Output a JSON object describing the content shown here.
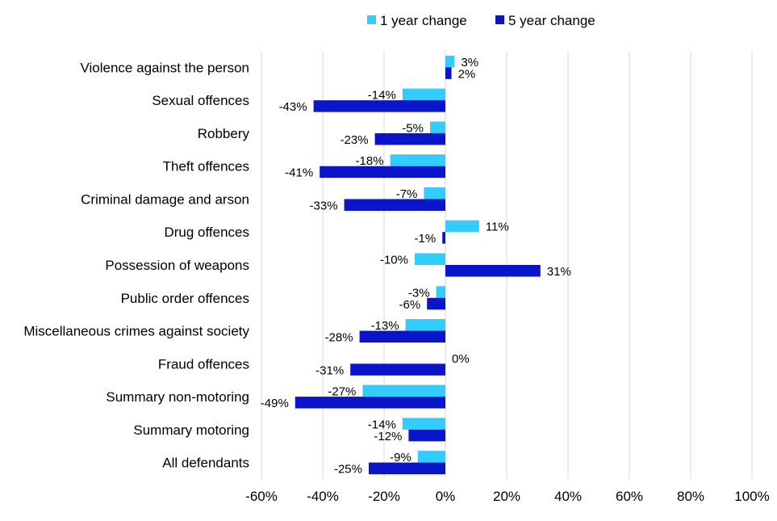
{
  "chart_data": {
    "type": "bar",
    "orientation": "horizontal",
    "categories": [
      "Violence against the person",
      "Sexual offences",
      "Robbery",
      "Theft offences",
      "Criminal damage and arson",
      "Drug offences",
      "Possession of weapons",
      "Public order offences",
      "Miscellaneous crimes against society",
      "Fraud offences",
      "Summary non-motoring",
      "Summary motoring",
      "All defendants"
    ],
    "series": [
      {
        "name": "1 year change",
        "color": "#33CCFF",
        "values": [
          3,
          -14,
          -5,
          -18,
          -7,
          11,
          -10,
          -3,
          -13,
          0,
          -27,
          -14,
          -9
        ],
        "labels": [
          "3%",
          "-14%",
          "-5%",
          "-18%",
          "-7%",
          "11%",
          "-10%",
          "-3%",
          "-13%",
          "0%",
          "-27%",
          "-14%",
          "-9%"
        ]
      },
      {
        "name": "5 year change",
        "color": "#0A14C8",
        "values": [
          2,
          -43,
          -23,
          -41,
          -33,
          -1,
          31,
          -6,
          -28,
          -31,
          -49,
          -12,
          -25
        ],
        "labels": [
          "2%",
          "-43%",
          "-23%",
          "-41%",
          "-33%",
          "-1%",
          "31%",
          "-6%",
          "-28%",
          "-31%",
          "-49%",
          "-12%",
          "-25%"
        ]
      }
    ],
    "xlim": [
      -60,
      100
    ],
    "x_ticks": [
      -60,
      -40,
      -20,
      0,
      20,
      40,
      60,
      80,
      100
    ],
    "x_tick_labels": [
      "-60%",
      "-40%",
      "-20%",
      "0%",
      "20%",
      "40%",
      "60%",
      "80%",
      "100%"
    ],
    "grid": "vertical",
    "legend": "top"
  }
}
